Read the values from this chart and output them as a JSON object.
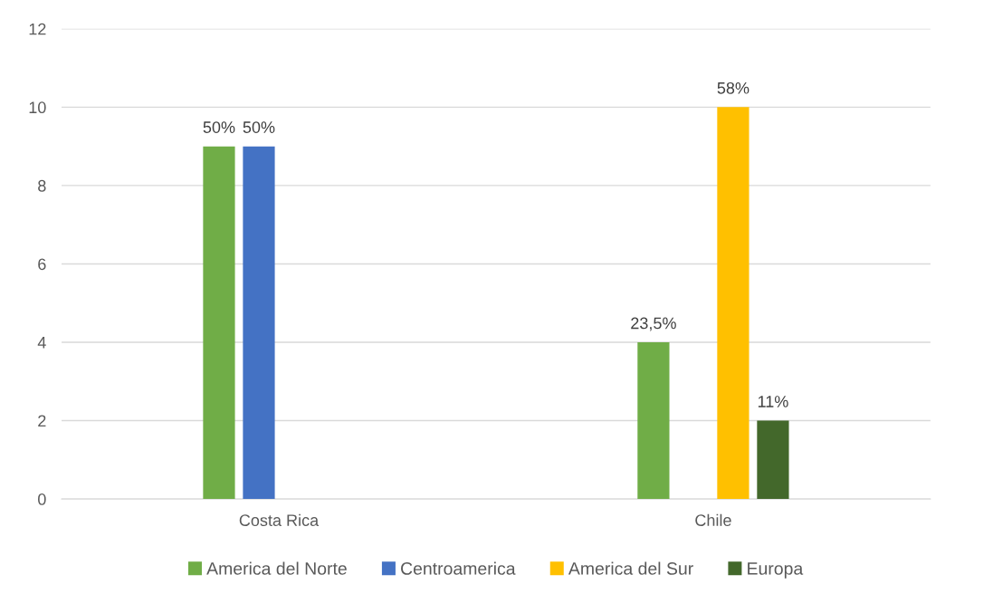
{
  "chart_data": {
    "type": "bar",
    "categories": [
      "Costa Rica",
      "Chile"
    ],
    "series": [
      {
        "name": "America del Norte",
        "color": "#70ad47",
        "values": [
          9,
          4
        ]
      },
      {
        "name": "Centroamerica",
        "color": "#4472c4",
        "values": [
          9,
          null
        ]
      },
      {
        "name": "America del Sur",
        "color": "#ffc000",
        "values": [
          null,
          10
        ]
      },
      {
        "name": "Europa",
        "color": "#43682b",
        "values": [
          null,
          2
        ]
      }
    ],
    "annotations": [
      {
        "text": "50%",
        "x": "Costa Rica",
        "y": 9
      },
      {
        "text": "50%",
        "x": "Costa Rica",
        "y": 9
      },
      {
        "text": "23,5%",
        "x": "Chile",
        "y": 4
      },
      {
        "text": "58%",
        "x": "Chile",
        "y": 10
      },
      {
        "text": "11%",
        "x": "Chile",
        "y": 2
      }
    ],
    "ylim": [
      0,
      12
    ],
    "yticks": [
      0,
      2,
      4,
      6,
      8,
      10,
      12
    ],
    "grid": "y",
    "legend": "bottom"
  }
}
